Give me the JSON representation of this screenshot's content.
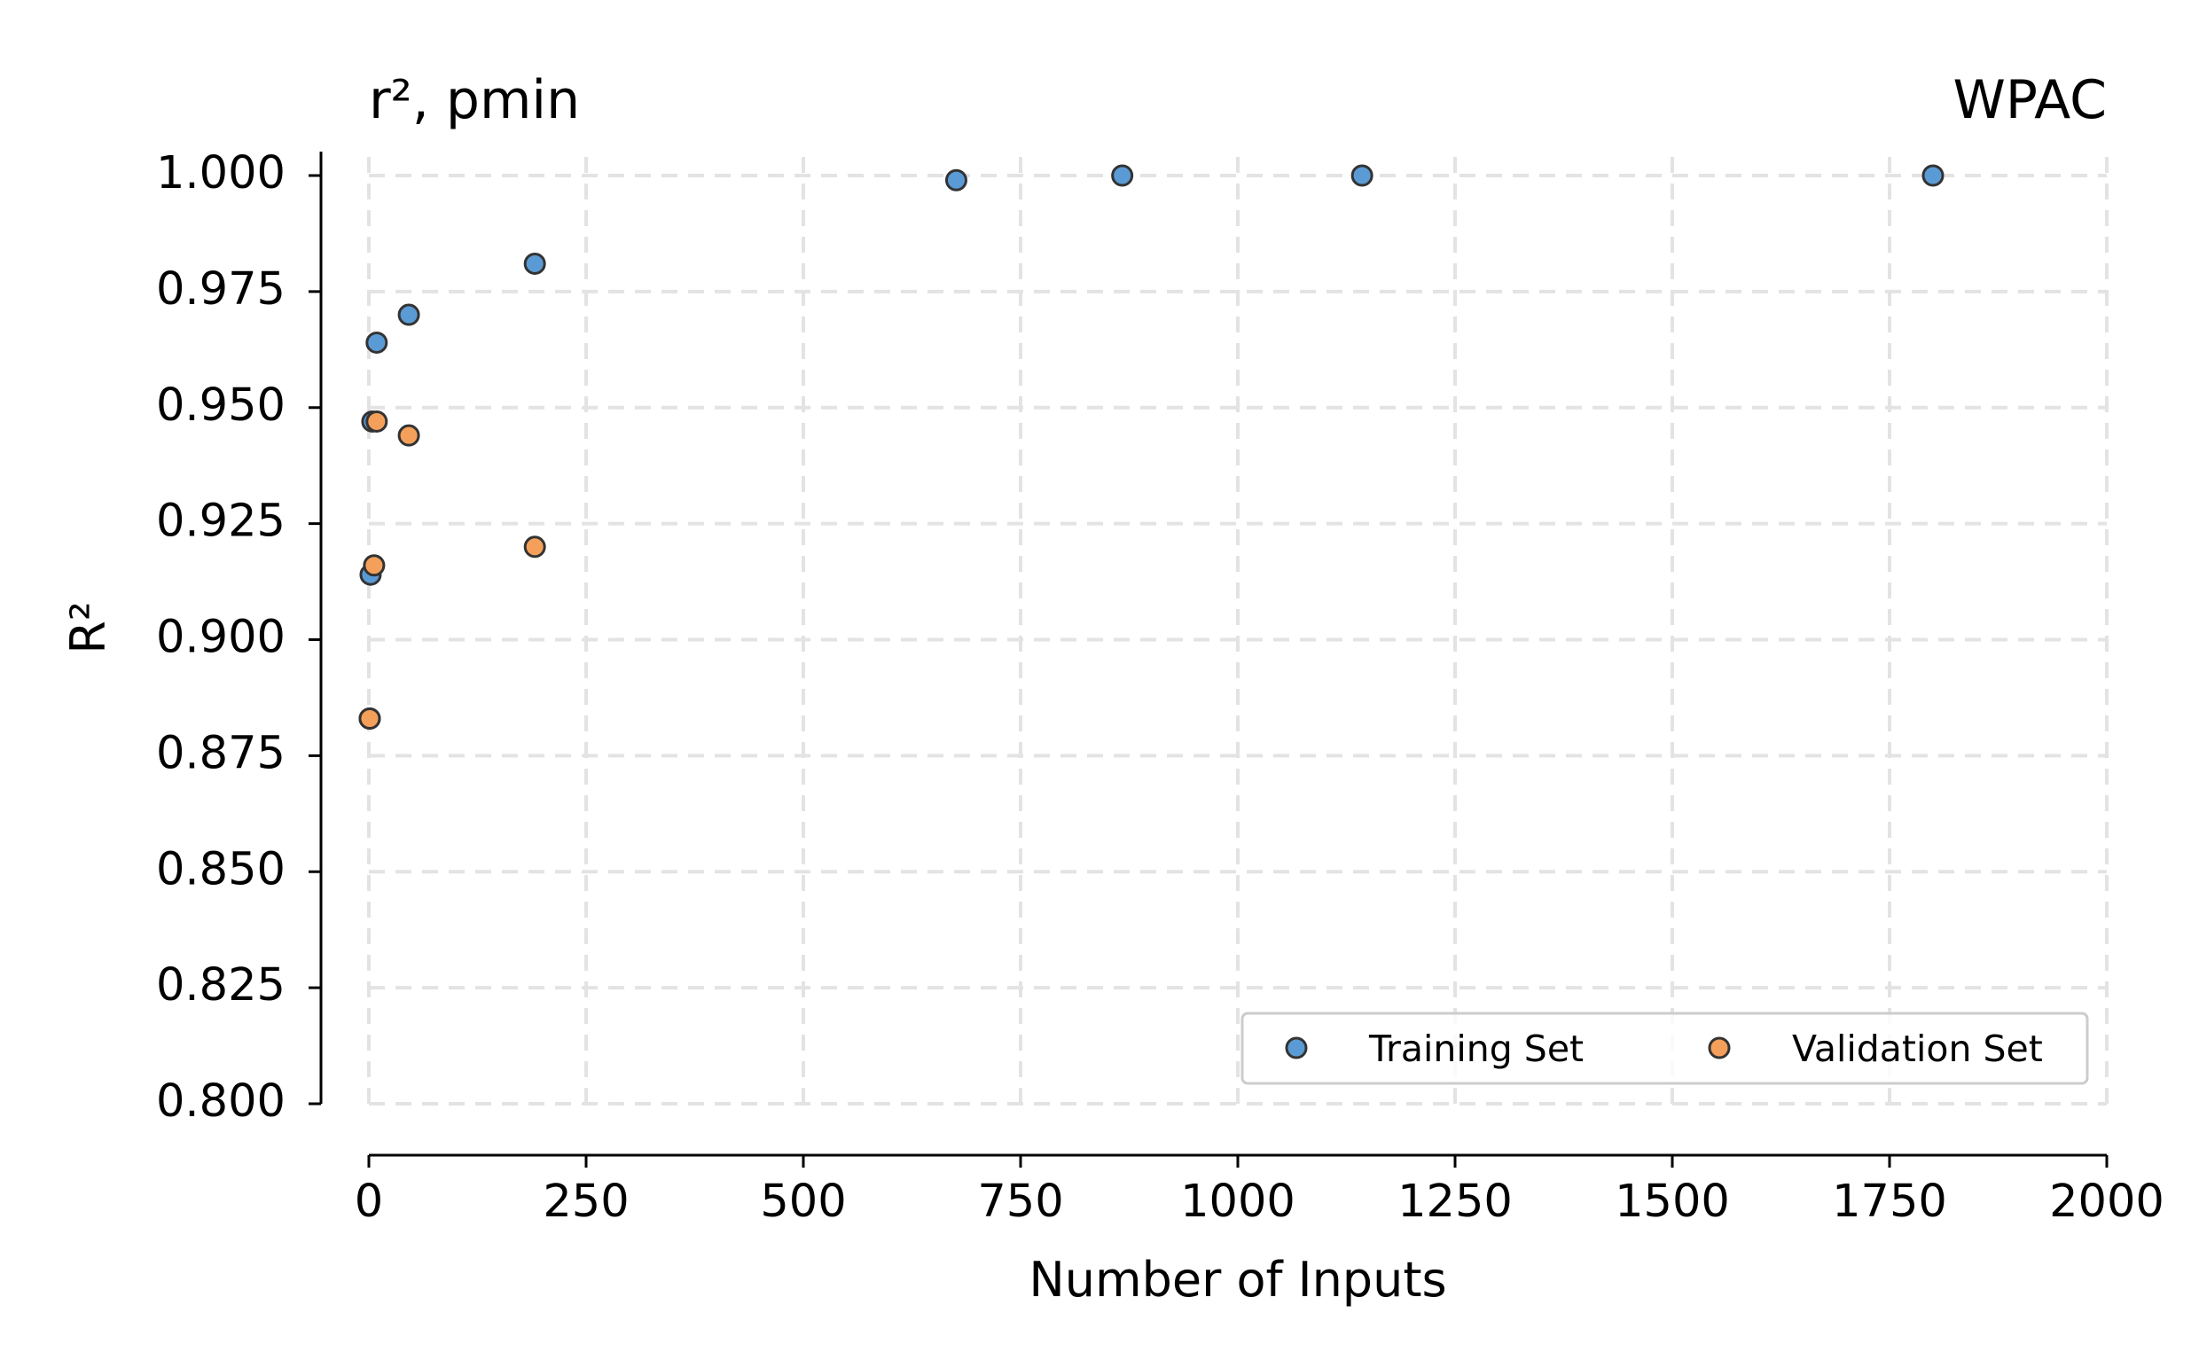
{
  "chart_data": {
    "type": "scatter",
    "title_left": "r², pmin",
    "title_right": "WPAC",
    "xlabel": "Number of Inputs",
    "ylabel": "R²",
    "xlim": [
      0,
      2000
    ],
    "ylim": [
      0.8,
      1.0
    ],
    "xticks": [
      0,
      250,
      500,
      750,
      1000,
      1250,
      1500,
      1750,
      2000
    ],
    "xtick_labels": [
      "0",
      "250",
      "500",
      "750",
      "1000",
      "1250",
      "1500",
      "1750",
      "2000"
    ],
    "yticks": [
      0.8,
      0.825,
      0.85,
      0.875,
      0.9,
      0.925,
      0.95,
      0.975,
      1.0
    ],
    "ytick_labels": [
      "0.800",
      "0.825",
      "0.850",
      "0.875",
      "0.900",
      "0.925",
      "0.950",
      "0.975",
      "1.000"
    ],
    "grid": true,
    "legend_position": "lower-right",
    "series": [
      {
        "name": "Training Set",
        "color": "#5b9bd5",
        "points": [
          {
            "x": 1,
            "y": 0.883
          },
          {
            "x": 2,
            "y": 0.914
          },
          {
            "x": 4,
            "y": 0.947
          },
          {
            "x": 9,
            "y": 0.964
          },
          {
            "x": 46,
            "y": 0.97
          },
          {
            "x": 191,
            "y": 0.981
          },
          {
            "x": 676,
            "y": 0.999
          },
          {
            "x": 867,
            "y": 1.0
          },
          {
            "x": 1143,
            "y": 1.0
          },
          {
            "x": 1800,
            "y": 1.0
          }
        ]
      },
      {
        "name": "Validation Set",
        "color": "#f5a05a",
        "points": [
          {
            "x": 1,
            "y": 0.883
          },
          {
            "x": 6,
            "y": 0.916
          },
          {
            "x": 9,
            "y": 0.947
          },
          {
            "x": 46,
            "y": 0.944
          },
          {
            "x": 191,
            "y": 0.92
          }
        ]
      }
    ]
  }
}
